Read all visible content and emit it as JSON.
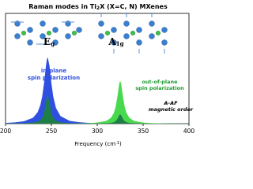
{
  "chart_data": {
    "type": "area",
    "title_parts": [
      "Raman modes in Ti",
      "2",
      "X (X=C, N) MXenes"
    ],
    "x_label": "Frequency (cm",
    "x_label_sup": "-1",
    "x_label_end": ")",
    "x": [
      200,
      210,
      220,
      230,
      235,
      238,
      240,
      242,
      244,
      245,
      246,
      248,
      250,
      252,
      255,
      260,
      270,
      280,
      290,
      300,
      310,
      315,
      318,
      320,
      322,
      324,
      325,
      326,
      328,
      330,
      332,
      335,
      340,
      350,
      360,
      380,
      400
    ],
    "series": [
      {
        "color": "#2f4fe0",
        "values": [
          0.007,
          0.012,
          0.023,
          0.057,
          0.11,
          0.18,
          0.262,
          0.39,
          0.552,
          0.615,
          0.64,
          0.552,
          0.39,
          0.262,
          0.151,
          0.072,
          0.027,
          0.014,
          0.008,
          0.005,
          0.004,
          0.003,
          0.003,
          0.003,
          0.003,
          0.003,
          0.003,
          0.003,
          0.003,
          0.003,
          0.003,
          0.003,
          0.002,
          0.002,
          0.002,
          0.001,
          0.001
        ]
      },
      {
        "color": "#49d94f",
        "values": [
          0.001,
          0.001,
          0.001,
          0.001,
          0.001,
          0.001,
          0.001,
          0.001,
          0.001,
          0.001,
          0.001,
          0.001,
          0.001,
          0.001,
          0.001,
          0.001,
          0.002,
          0.003,
          0.005,
          0.01,
          0.027,
          0.057,
          0.101,
          0.16,
          0.262,
          0.386,
          0.41,
          0.386,
          0.262,
          0.16,
          0.101,
          0.057,
          0.027,
          0.01,
          0.005,
          0.002,
          0.001
        ]
      },
      {
        "color": "#1e7f46",
        "values": [
          0.001,
          0.002,
          0.004,
          0.01,
          0.019,
          0.035,
          0.056,
          0.101,
          0.194,
          0.252,
          0.28,
          0.194,
          0.101,
          0.056,
          0.028,
          0.012,
          0.004,
          0.002,
          0.001,
          0.001,
          0.004,
          0.007,
          0.014,
          0.024,
          0.045,
          0.081,
          0.09,
          0.081,
          0.045,
          0.024,
          0.014,
          0.007,
          0.004,
          0.001,
          0,
          0,
          0
        ]
      }
    ],
    "xlim": [
      200,
      400
    ],
    "xticks": [
      200,
      250,
      300,
      350,
      400
    ],
    "ylim": [
      0,
      1
    ],
    "annotations": [
      {
        "text": "E",
        "sub": "g",
        "color": "#000000"
      },
      {
        "text": "A",
        "sub": "1g",
        "color": "#000000"
      },
      {
        "text": "in-plane",
        "color": "#2f4fe0"
      },
      {
        "text": "spin polarization",
        "color": "#2f4fe0"
      },
      {
        "text": "out-of-plane",
        "color": "#1e9a2e"
      },
      {
        "text": "spin polarization",
        "color": "#1e9a2e"
      },
      {
        "text": "A-AF",
        "color": "#000000"
      },
      {
        "text": "magnetic order",
        "color": "#000000"
      }
    ]
  }
}
